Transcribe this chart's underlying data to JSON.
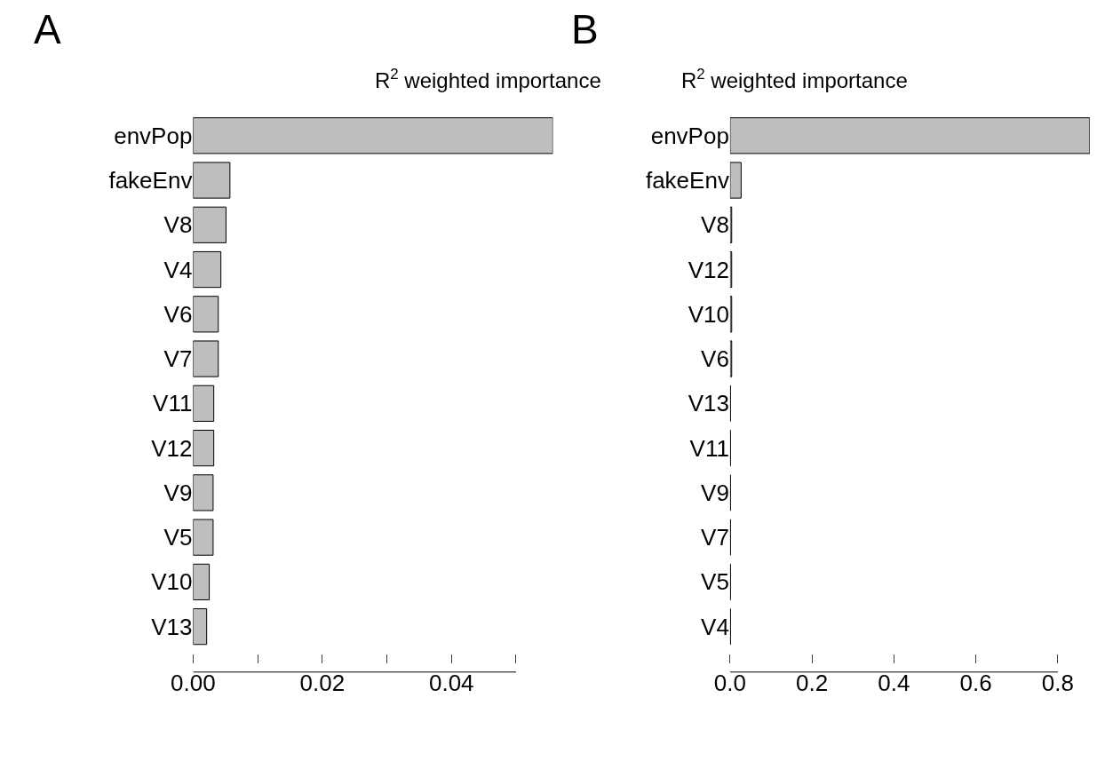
{
  "chart_data": [
    {
      "type": "bar",
      "orientation": "horizontal",
      "title": "R$^{2}$ weighted importance",
      "annotations": [
        "A"
      ],
      "categories": [
        "envPop",
        "fakeEnv",
        "V8",
        "V4",
        "V6",
        "V7",
        "V11",
        "V12",
        "V9",
        "V5",
        "V10",
        "V13"
      ],
      "values": [
        0.0557,
        0.0057,
        0.0051,
        0.0043,
        0.0039,
        0.0039,
        0.0032,
        0.0032,
        0.0031,
        0.0031,
        0.0025,
        0.0021
      ],
      "color": "#bebebe",
      "xlim": [
        0,
        0.0557
      ],
      "xticks": [
        {
          "value": 0,
          "label": "0.00"
        },
        {
          "value": 0.01,
          "label": null
        },
        {
          "value": 0.02,
          "label": "0.02"
        },
        {
          "value": 0.03,
          "label": null
        },
        {
          "value": 0.04,
          "label": "0.04"
        },
        {
          "value": 0.05,
          "label": null
        }
      ]
    },
    {
      "type": "bar",
      "orientation": "horizontal",
      "title": "R$^{2}$ weighted importance",
      "annotations": [
        "B"
      ],
      "categories": [
        "envPop",
        "fakeEnv",
        "V8",
        "V12",
        "V10",
        "V6",
        "V13",
        "V11",
        "V9",
        "V7",
        "V5",
        "V4"
      ],
      "values": [
        0.878,
        0.027,
        0.004,
        0.004,
        0.004,
        0.004,
        0.001,
        0.001,
        0.001,
        0.001,
        0.001,
        0.001
      ],
      "color": "#bebebe",
      "xlim": [
        0,
        0.878
      ],
      "xticks": [
        {
          "value": 0,
          "label": "0.0"
        },
        {
          "value": 0.2,
          "label": "0.2"
        },
        {
          "value": 0.4,
          "label": "0.4"
        },
        {
          "value": 0.6,
          "label": "0.6"
        },
        {
          "value": 0.8,
          "label": "0.8"
        }
      ]
    }
  ]
}
